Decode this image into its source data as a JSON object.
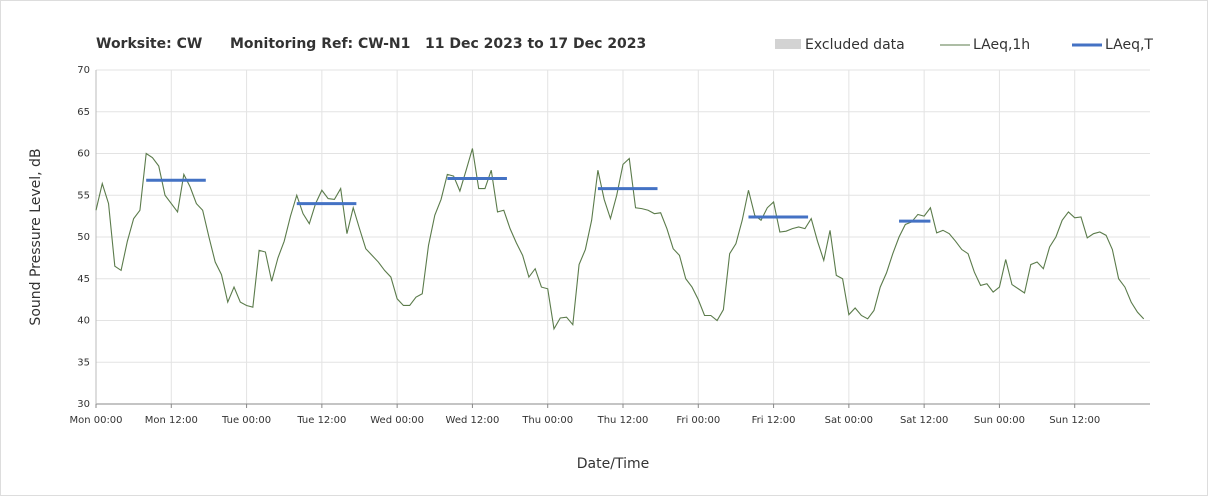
{
  "chart_data": {
    "type": "line",
    "title": "Worksite: CW",
    "monitoring_ref": "Monitoring Ref: CW-N1",
    "date_range": "11 Dec 2023 to 17 Dec 2023",
    "x_label": "Date/Time",
    "y_label": "Sound Pressure Level, dB",
    "xlim": [
      0,
      168
    ],
    "ylim": [
      30,
      70
    ],
    "yticks": [
      30,
      35,
      40,
      45,
      50,
      55,
      60,
      65,
      70
    ],
    "xticks": [
      {
        "value": 0,
        "label": "Mon 00:00"
      },
      {
        "value": 12,
        "label": "Mon 12:00"
      },
      {
        "value": 24,
        "label": "Tue 00:00"
      },
      {
        "value": 36,
        "label": "Tue 12:00"
      },
      {
        "value": 48,
        "label": "Wed 00:00"
      },
      {
        "value": 60,
        "label": "Wed 12:00"
      },
      {
        "value": 72,
        "label": "Thu 00:00"
      },
      {
        "value": 84,
        "label": "Thu 12:00"
      },
      {
        "value": 96,
        "label": "Fri 00:00"
      },
      {
        "value": 108,
        "label": "Fri 12:00"
      },
      {
        "value": 120,
        "label": "Sat 00:00"
      },
      {
        "value": 132,
        "label": "Sat 12:00"
      },
      {
        "value": 144,
        "label": "Sun 00:00"
      },
      {
        "value": 156,
        "label": "Sun 12:00"
      }
    ],
    "grid": true,
    "excluded": {
      "name": "Excluded data",
      "color": "#d3d3d3"
    },
    "series": [
      {
        "name": "LAeq,1h",
        "color": "#5b7b4b",
        "x": [
          0,
          1,
          2,
          3,
          4,
          5,
          6,
          7,
          8,
          9,
          10,
          11,
          12,
          13,
          14,
          15,
          16,
          17,
          18,
          19,
          20,
          21,
          22,
          23,
          24,
          25,
          26,
          27,
          28,
          29,
          30,
          31,
          32,
          33,
          34,
          35,
          36,
          37,
          38,
          39,
          40,
          41,
          42,
          43,
          44,
          45,
          46,
          47,
          48,
          49,
          50,
          51,
          52,
          53,
          54,
          55,
          56,
          57,
          58,
          59,
          60,
          61,
          62,
          63,
          64,
          65,
          66,
          67,
          68,
          69,
          70,
          71,
          72,
          73,
          74,
          75,
          76,
          77,
          78,
          79,
          80,
          81,
          82,
          83,
          84,
          85,
          86,
          87,
          88,
          89,
          90,
          91,
          92,
          93,
          94,
          95,
          96,
          97,
          98,
          99,
          100,
          101,
          102,
          103,
          104,
          105,
          106,
          107,
          108,
          109,
          110,
          111,
          112,
          113,
          114,
          115,
          116,
          117,
          118,
          119,
          120,
          121,
          122,
          123,
          124,
          125,
          126,
          127,
          128,
          129,
          130,
          131,
          132,
          133,
          134,
          135,
          136,
          137,
          138,
          139,
          140,
          141,
          142,
          143,
          144,
          145,
          146,
          147,
          148,
          149,
          150,
          151,
          152,
          153,
          154,
          155,
          156,
          157,
          158,
          159,
          160,
          161,
          162,
          163,
          164,
          165,
          166,
          167
        ],
        "values": [
          53.2,
          56.4,
          54,
          46.5,
          46,
          49.5,
          52.2,
          53.2,
          60,
          59.5,
          58.5,
          55,
          54,
          53,
          57.5,
          56,
          54,
          53.2,
          50,
          47,
          45.5,
          42.2,
          44,
          42.2,
          41.8,
          41.6,
          48.4,
          48.2,
          44.7,
          47.5,
          49.5,
          52.5,
          55,
          52.8,
          51.6,
          54,
          55.6,
          54.6,
          54.5,
          55.8,
          50.4,
          53.5,
          51,
          48.6,
          47.8,
          47,
          46,
          45.2,
          42.6,
          41.8,
          41.8,
          42.8,
          43.2,
          49,
          52.6,
          54.5,
          57.5,
          57.3,
          55.5,
          58,
          60.6,
          55.8,
          55.8,
          58,
          53,
          53.2,
          51,
          49.3,
          47.8,
          45.2,
          46.2,
          44,
          43.8,
          39,
          40.3,
          40.4,
          39.5,
          46.7,
          48.5,
          52,
          58,
          54.5,
          52.2,
          55,
          58.7,
          59.4,
          53.5,
          53.4,
          53.2,
          52.8,
          52.9,
          51,
          48.6,
          47.8,
          45,
          44,
          42.5,
          40.6,
          40.6,
          40,
          41.3,
          48,
          49.2,
          52,
          55.6,
          52.6,
          52,
          53.5,
          54.2,
          50.6,
          50.7,
          51,
          51.2,
          51,
          52.2,
          49.5,
          47.2,
          50.8,
          45.4,
          45,
          40.7,
          41.5,
          40.6,
          40.2,
          41.2,
          44,
          45.7,
          48,
          50,
          51.5,
          51.8,
          52.7,
          52.5,
          53.5,
          50.5,
          50.8,
          50.4,
          49.5,
          48.5,
          48,
          45.8,
          44.2,
          44.4,
          43.4,
          44,
          47.3,
          44.3,
          43.8,
          43.3,
          46.7,
          47,
          46.2,
          48.8,
          50,
          52,
          53,
          52.3,
          52.4,
          49.9,
          50.4,
          50.6,
          50.2,
          48.5,
          45,
          44,
          42.2,
          41,
          40.2
        ]
      },
      {
        "name": "LAeq,T",
        "color": "#4472c4",
        "periods": [
          {
            "start": 8,
            "end": 17.5,
            "value": 56.8
          },
          {
            "start": 32,
            "end": 41.5,
            "value": 54
          },
          {
            "start": 56,
            "end": 65.5,
            "value": 57
          },
          {
            "start": 80,
            "end": 89.5,
            "value": 55.8
          },
          {
            "start": 104,
            "end": 113.5,
            "value": 52.4
          },
          {
            "start": 128,
            "end": 133,
            "value": 51.9
          }
        ]
      }
    ]
  }
}
